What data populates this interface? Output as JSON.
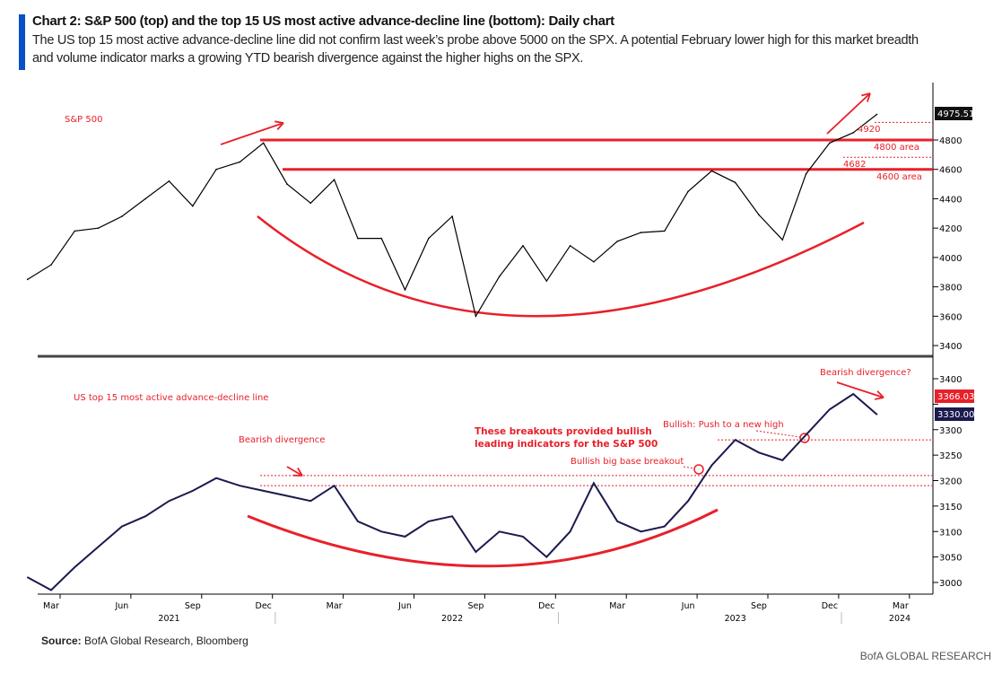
{
  "header": {
    "title": "Chart 2: S&P 500 (top) and the top 15 US most active advance-decline line (bottom): Daily chart",
    "subtitle": "The US top 15 most active advance-decline line did not confirm last week’s probe above 5000 on the SPX. A potential February lower high for this market breadth and volume indicator marks a growing YTD bearish divergence against the higher highs on the SPX."
  },
  "footer": {
    "source_label": "Source:",
    "source": " BofA Global Research, Bloomberg",
    "brand": "BofA GLOBAL RESEARCH"
  },
  "colors": {
    "annotation": "#e8202a",
    "ad_line": "#1a1a4e",
    "spx": "#000000",
    "accent": "#0a50c8"
  },
  "chart_data": [
    {
      "type": "line",
      "panel": "top",
      "legend_label": "S&P 500",
      "yticks": [
        3400,
        3600,
        3800,
        4000,
        4200,
        4400,
        4600,
        4800
      ],
      "ylim": [
        3350,
        5080
      ],
      "last_value_label": "4975.51",
      "x": [
        "2021-02",
        "2021-03",
        "2021-04",
        "2021-05",
        "2021-06",
        "2021-07",
        "2021-08",
        "2021-09",
        "2021-10",
        "2021-11",
        "2021-12",
        "2022-01",
        "2022-02",
        "2022-03",
        "2022-04",
        "2022-05",
        "2022-06",
        "2022-07",
        "2022-08",
        "2022-09",
        "2022-10",
        "2022-11",
        "2022-12",
        "2023-01",
        "2023-02",
        "2023-03",
        "2023-04",
        "2023-05",
        "2023-06",
        "2023-07",
        "2023-08",
        "2023-09",
        "2023-10",
        "2023-11",
        "2023-12",
        "2024-01",
        "2024-02"
      ],
      "values": [
        3850,
        3950,
        4180,
        4200,
        4280,
        4400,
        4520,
        4350,
        4600,
        4650,
        4780,
        4500,
        4370,
        4530,
        4130,
        4130,
        3780,
        4130,
        4280,
        3600,
        3870,
        4080,
        3840,
        4080,
        3970,
        4110,
        4170,
        4180,
        4450,
        4590,
        4510,
        4290,
        4120,
        4570,
        4780,
        4850,
        4975
      ],
      "annotations": [
        {
          "label": "4920",
          "value": 4920,
          "style": "dotted"
        },
        {
          "label": "4800 area",
          "value": 4800,
          "style": "solid"
        },
        {
          "label": "4682",
          "value": 4682,
          "style": "dotted"
        },
        {
          "label": "4600 area",
          "value": 4600,
          "style": "solid"
        }
      ]
    },
    {
      "type": "line",
      "panel": "bottom",
      "legend_label": "US top 15 most active advance-decline line",
      "yticks": [
        3000,
        3050,
        3100,
        3150,
        3200,
        3250,
        3300,
        3350,
        3400
      ],
      "ylim": [
        2965,
        3430
      ],
      "last_value_labels": [
        "3366.03",
        "3330.00"
      ],
      "x": [
        "2021-02",
        "2021-03",
        "2021-04",
        "2021-05",
        "2021-06",
        "2021-07",
        "2021-08",
        "2021-09",
        "2021-10",
        "2021-11",
        "2021-12",
        "2022-01",
        "2022-02",
        "2022-03",
        "2022-04",
        "2022-05",
        "2022-06",
        "2022-07",
        "2022-08",
        "2022-09",
        "2022-10",
        "2022-11",
        "2022-12",
        "2023-01",
        "2023-02",
        "2023-03",
        "2023-04",
        "2023-05",
        "2023-06",
        "2023-07",
        "2023-08",
        "2023-09",
        "2023-10",
        "2023-11",
        "2023-12",
        "2024-01",
        "2024-02"
      ],
      "values": [
        3010,
        2985,
        3030,
        3070,
        3110,
        3130,
        3160,
        3180,
        3205,
        3190,
        3180,
        3170,
        3160,
        3190,
        3120,
        3100,
        3090,
        3120,
        3130,
        3060,
        3100,
        3090,
        3050,
        3100,
        3195,
        3120,
        3100,
        3110,
        3160,
        3230,
        3280,
        3255,
        3240,
        3290,
        3340,
        3370,
        3330
      ],
      "annotations": [
        {
          "label": "Bearish divergence",
          "value": 3210
        },
        {
          "label": "Bullish big base breakout",
          "value": 3210
        },
        {
          "label": "Bullish: Push to a new high",
          "value": 3280
        },
        {
          "label": "These breakouts provided bullish",
          "value": null
        },
        {
          "label": "leading indicators for the S&P 500",
          "value": null
        },
        {
          "label": "Bearish divergence?",
          "value": null
        }
      ],
      "levels": [
        3280,
        3210,
        3190
      ]
    },
    {
      "xaxis": {
        "months": [
          "Mar",
          "Jun",
          "Sep",
          "Dec",
          "Mar",
          "Jun",
          "Sep",
          "Dec",
          "Mar",
          "Jun",
          "Sep",
          "Dec",
          "Mar"
        ],
        "years": [
          "2021",
          "2022",
          "2023",
          "2024"
        ]
      }
    }
  ]
}
